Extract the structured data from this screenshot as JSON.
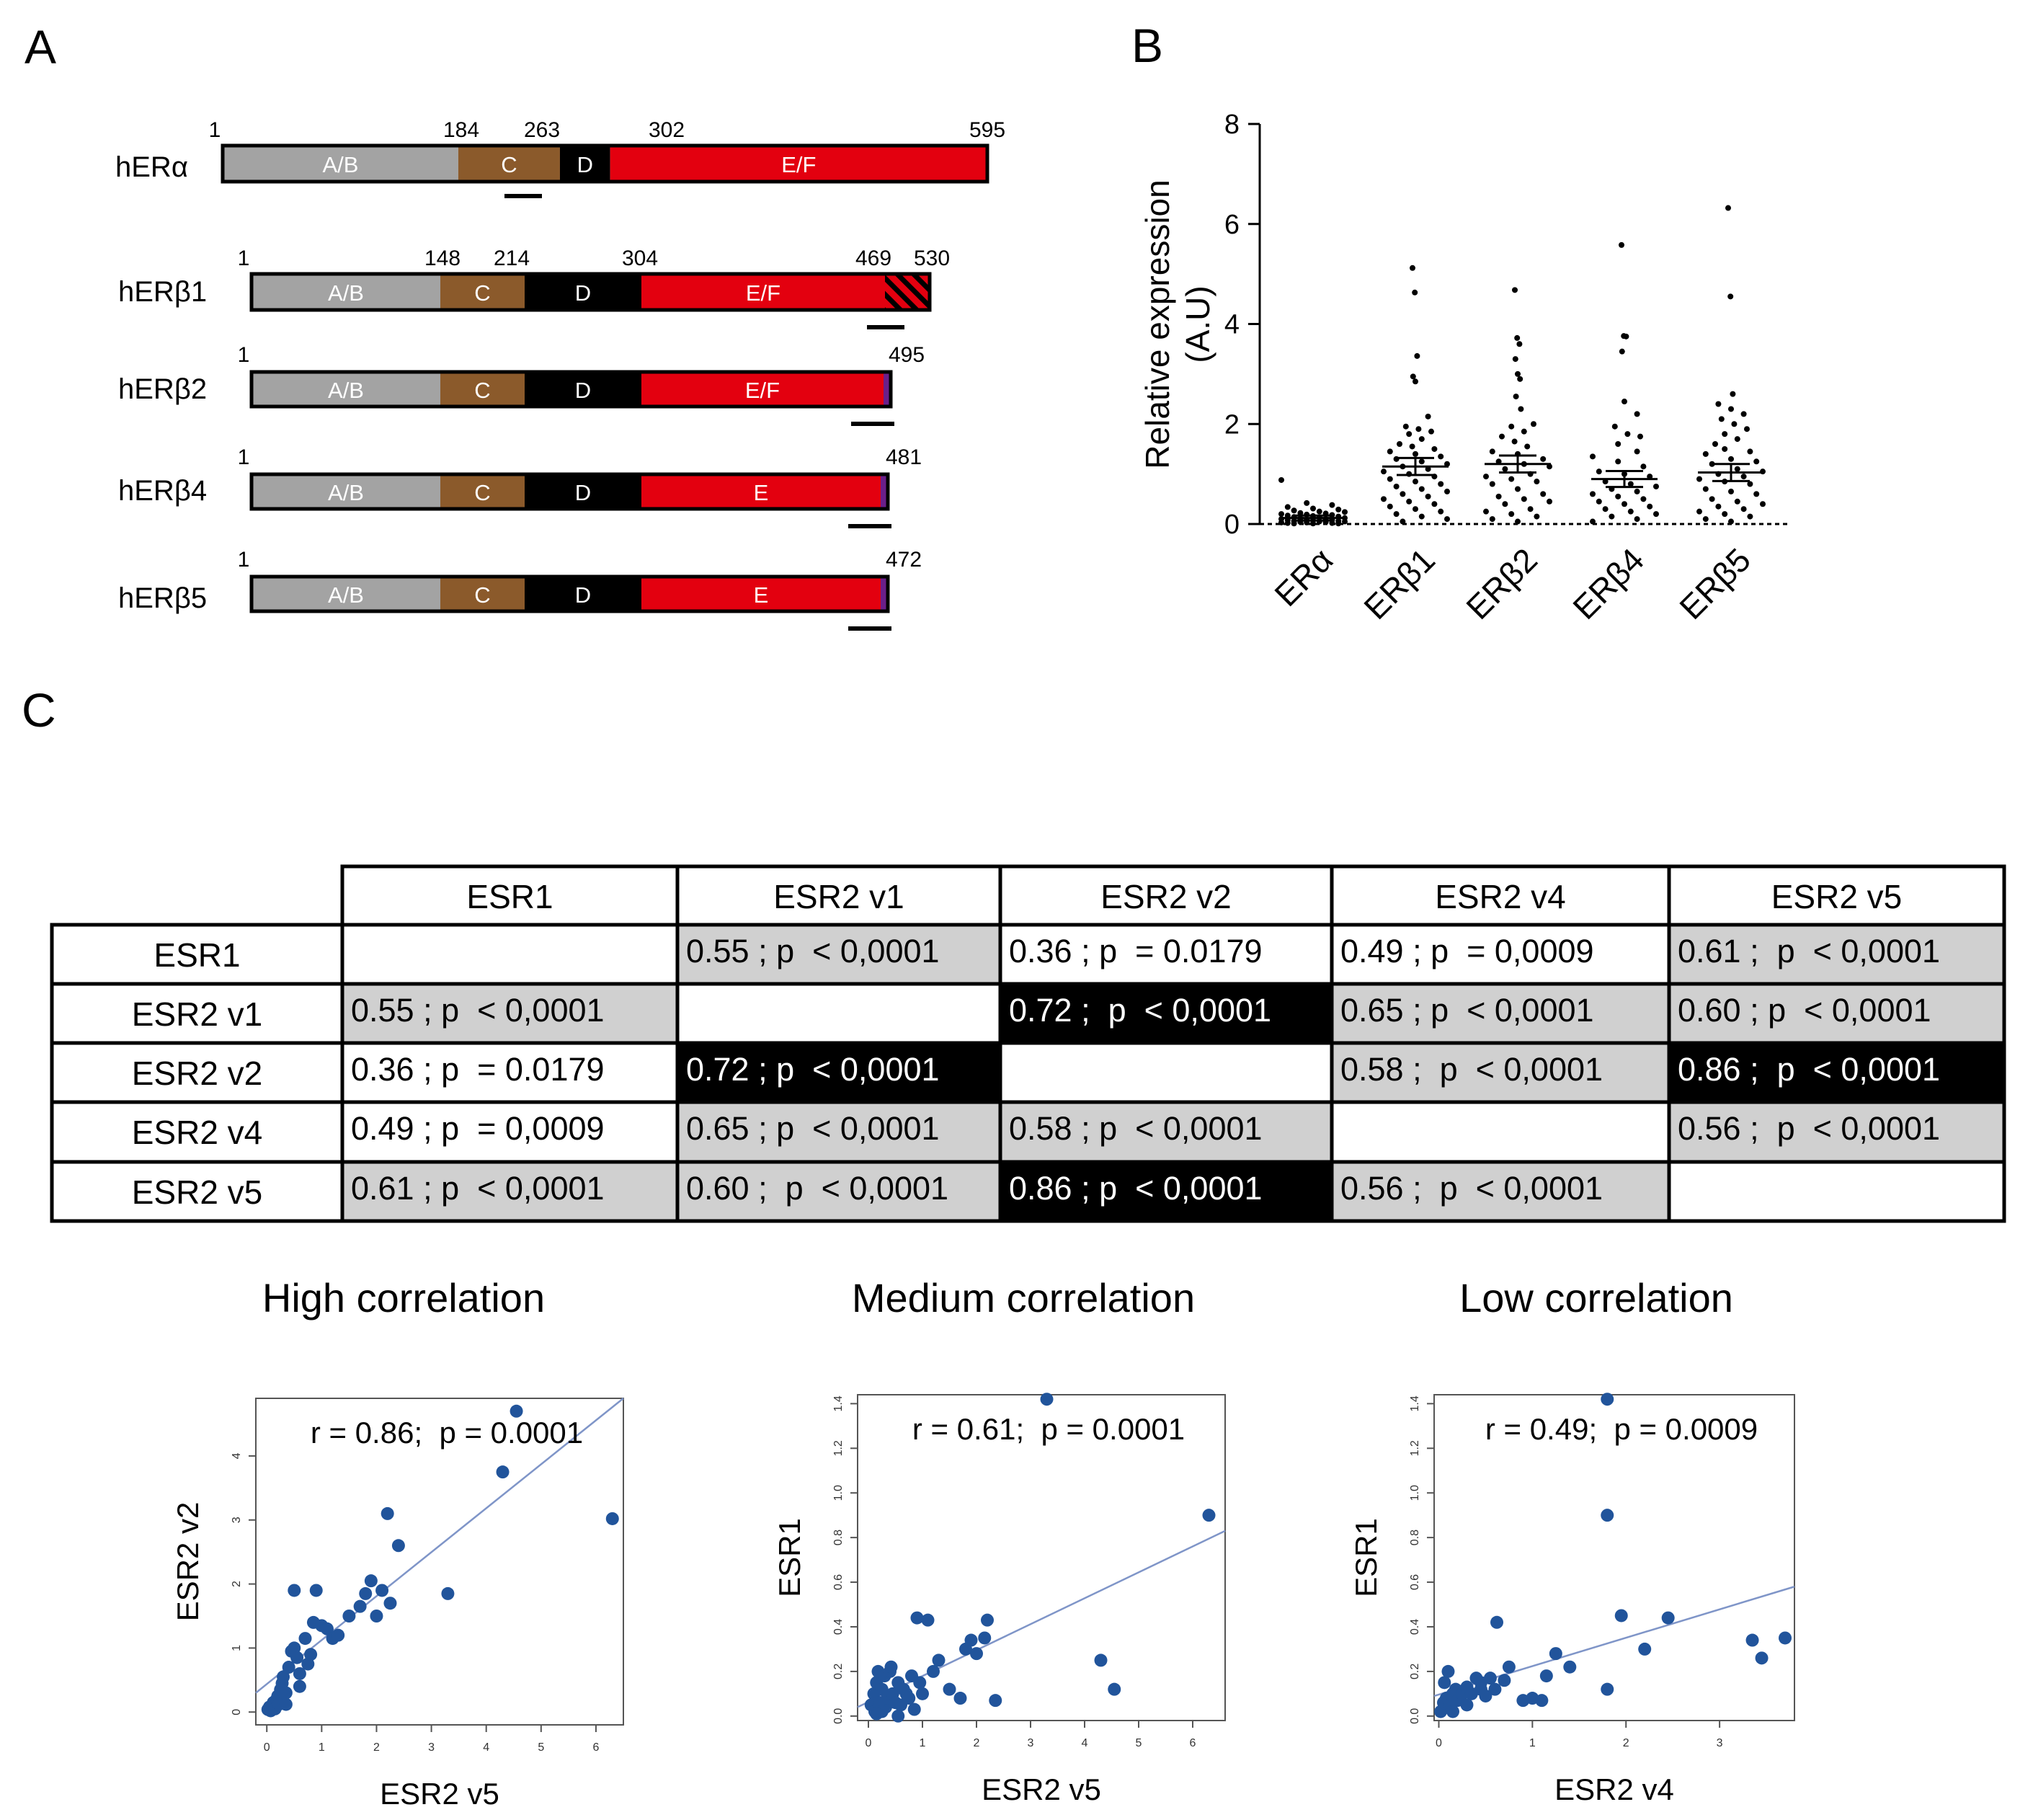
{
  "panel_labels": {
    "a": "A",
    "b": "B",
    "c": "C"
  },
  "colors": {
    "ab": "#a3a3a3",
    "c": "#8b5a2b",
    "d": "#000000",
    "ef": "#e3000f",
    "tail": "#6a1f8a",
    "table_gray": "#d0d0d0",
    "point": "#21549b",
    "line": "#7f95c8"
  },
  "panel_a": {
    "proteins": [
      {
        "name": "hERα",
        "length": 595,
        "positions": [
          1,
          184,
          263,
          302,
          595
        ],
        "labels": [
          "1",
          "184",
          "263",
          "302",
          "595"
        ],
        "segments": [
          {
            "label": "A/B",
            "kind": "ab"
          },
          {
            "label": "C",
            "kind": "c"
          },
          {
            "label": "D",
            "kind": "d"
          },
          {
            "label": "E/F",
            "kind": "ef"
          }
        ]
      },
      {
        "name": "hERβ1",
        "length": 530,
        "positions": [
          1,
          148,
          214,
          304,
          469,
          530
        ],
        "labels": [
          "1",
          "148",
          "214",
          "304",
          "469",
          "530"
        ],
        "segments": [
          {
            "label": "A/B",
            "kind": "ab"
          },
          {
            "label": "C",
            "kind": "c"
          },
          {
            "label": "D",
            "kind": "d"
          },
          {
            "label": "E/F",
            "kind": "ef"
          },
          {
            "label": "",
            "kind": "hatch"
          }
        ]
      },
      {
        "name": "hERβ2",
        "length": 495,
        "positions": [
          1,
          148,
          214,
          304,
          495
        ],
        "labels": [
          "1",
          "495"
        ],
        "segments": [
          {
            "label": "A/B",
            "kind": "ab"
          },
          {
            "label": "C",
            "kind": "c"
          },
          {
            "label": "D",
            "kind": "d"
          },
          {
            "label": "E/F",
            "kind": "ef"
          }
        ]
      },
      {
        "name": "hERβ4",
        "length": 481,
        "positions": [
          1,
          148,
          214,
          304,
          481
        ],
        "labels": [
          "1",
          "481"
        ],
        "segments": [
          {
            "label": "A/B",
            "kind": "ab"
          },
          {
            "label": "C",
            "kind": "c"
          },
          {
            "label": "D",
            "kind": "d"
          },
          {
            "label": "E",
            "kind": "ef"
          }
        ]
      },
      {
        "name": "hERβ5",
        "length": 472,
        "positions": [
          1,
          148,
          214,
          304,
          472
        ],
        "labels": [
          "1",
          "472"
        ],
        "segments": [
          {
            "label": "A/B",
            "kind": "ab"
          },
          {
            "label": "C",
            "kind": "c"
          },
          {
            "label": "D",
            "kind": "d"
          },
          {
            "label": "E",
            "kind": "ef"
          }
        ]
      }
    ]
  },
  "chart_data": [
    {
      "id": "B",
      "type": "scatter",
      "title": "",
      "xlabel": "",
      "ylabel": "Relative expression",
      "ylabel2": "(A.U)",
      "ylim": [
        0,
        8
      ],
      "yticks": [
        "0",
        "2",
        "4",
        "6",
        "8"
      ],
      "categories": [
        "ERα",
        "ERβ1",
        "ERβ2",
        "ERβ4",
        "ERβ5"
      ],
      "means": [
        0.12,
        1.15,
        1.2,
        0.9,
        1.03
      ],
      "sem_upper": [
        0.17,
        1.32,
        1.37,
        1.06,
        1.2
      ],
      "sem_lower": [
        0.07,
        0.98,
        1.03,
        0.74,
        0.86
      ],
      "series": [
        {
          "name": "ERα",
          "values": [
            0.88,
            0.42,
            0.38,
            0.34,
            0.31,
            0.29,
            0.27,
            0.25,
            0.24,
            0.22,
            0.21,
            0.2,
            0.19,
            0.18,
            0.17,
            0.16,
            0.15,
            0.14,
            0.13,
            0.12,
            0.11,
            0.1,
            0.1,
            0.09,
            0.08,
            0.08,
            0.07,
            0.06,
            0.06,
            0.05,
            0.05,
            0.04,
            0.04,
            0.03,
            0.03,
            0.02,
            0.02,
            0.01,
            0.01,
            0.01
          ]
        },
        {
          "name": "ERβ1",
          "values": [
            5.12,
            4.63,
            3.36,
            2.95,
            2.85,
            2.15,
            1.95,
            1.9,
            1.85,
            1.8,
            1.7,
            1.6,
            1.55,
            1.5,
            1.45,
            1.4,
            1.35,
            1.3,
            1.25,
            1.2,
            1.15,
            1.1,
            1.05,
            1.0,
            0.95,
            0.9,
            0.85,
            0.8,
            0.75,
            0.7,
            0.65,
            0.6,
            0.55,
            0.5,
            0.45,
            0.4,
            0.35,
            0.3,
            0.25,
            0.2,
            0.15,
            0.1,
            0.05
          ]
        },
        {
          "name": "ERβ2",
          "values": [
            4.68,
            3.72,
            3.6,
            3.3,
            3.0,
            2.9,
            2.55,
            2.3,
            2.0,
            1.95,
            1.85,
            1.75,
            1.65,
            1.55,
            1.45,
            1.4,
            1.3,
            1.25,
            1.2,
            1.15,
            1.1,
            1.0,
            0.95,
            0.9,
            0.85,
            0.8,
            0.7,
            0.6,
            0.55,
            0.5,
            0.45,
            0.4,
            0.3,
            0.25,
            0.2,
            0.15,
            0.1,
            0.05
          ]
        },
        {
          "name": "ERβ4",
          "values": [
            5.58,
            3.76,
            3.75,
            3.45,
            2.45,
            2.2,
            1.95,
            1.8,
            1.75,
            1.6,
            1.45,
            1.35,
            1.25,
            1.15,
            1.05,
            1.0,
            0.95,
            0.85,
            0.8,
            0.75,
            0.7,
            0.65,
            0.6,
            0.55,
            0.5,
            0.45,
            0.4,
            0.35,
            0.3,
            0.25,
            0.2,
            0.15,
            0.1,
            0.05
          ]
        },
        {
          "name": "ERβ5",
          "values": [
            6.32,
            4.55,
            2.6,
            2.4,
            2.3,
            2.2,
            2.1,
            2.0,
            1.9,
            1.8,
            1.7,
            1.6,
            1.5,
            1.45,
            1.4,
            1.3,
            1.25,
            1.2,
            1.1,
            1.05,
            1.0,
            0.95,
            0.9,
            0.85,
            0.8,
            0.7,
            0.65,
            0.6,
            0.5,
            0.45,
            0.4,
            0.35,
            0.3,
            0.25,
            0.2,
            0.15,
            0.1,
            0.05
          ]
        }
      ]
    },
    {
      "id": "C-table",
      "type": "table",
      "columns": [
        "ESR1",
        "ESR2 v1",
        "ESR2 v2",
        "ESR2 v4",
        "ESR2 v5"
      ],
      "rows": [
        {
          "label": "ESR1",
          "cells": [
            {
              "text": "",
              "shade": "white"
            },
            {
              "text": "0.55 ; p  < 0,0001",
              "shade": "gray"
            },
            {
              "text": "0.36 ; p  = 0.0179",
              "shade": "white"
            },
            {
              "text": "0.49 ; p  = 0,0009",
              "shade": "white"
            },
            {
              "text": "0.61 ;  p  < 0,0001",
              "shade": "gray"
            }
          ]
        },
        {
          "label": "ESR2 v1",
          "cells": [
            {
              "text": "0.55 ; p  < 0,0001",
              "shade": "gray"
            },
            {
              "text": "",
              "shade": "white"
            },
            {
              "text": "0.72 ;  p  < 0,0001",
              "shade": "black"
            },
            {
              "text": "0.65 ; p  < 0,0001",
              "shade": "gray"
            },
            {
              "text": "0.60 ; p  < 0,0001",
              "shade": "gray"
            }
          ]
        },
        {
          "label": "ESR2 v2",
          "cells": [
            {
              "text": "0.36 ; p  = 0.0179",
              "shade": "white"
            },
            {
              "text": "0.72 ; p  < 0,0001",
              "shade": "black"
            },
            {
              "text": "",
              "shade": "white"
            },
            {
              "text": "0.58 ;  p  < 0,0001",
              "shade": "gray"
            },
            {
              "text": "0.86 ;  p  < 0,0001",
              "shade": "black"
            }
          ]
        },
        {
          "label": "ESR2 v4",
          "cells": [
            {
              "text": "0.49 ; p  = 0,0009",
              "shade": "white"
            },
            {
              "text": "0.65 ; p  < 0,0001",
              "shade": "gray"
            },
            {
              "text": "0.58 ; p  < 0,0001",
              "shade": "gray"
            },
            {
              "text": "",
              "shade": "white"
            },
            {
              "text": "0.56 ;  p  < 0,0001",
              "shade": "gray"
            }
          ]
        },
        {
          "label": "ESR2 v5",
          "cells": [
            {
              "text": "0.61 ; p  < 0,0001",
              "shade": "gray"
            },
            {
              "text": "0.60 ;  p  < 0,0001",
              "shade": "gray"
            },
            {
              "text": "0.86 ; p  < 0,0001",
              "shade": "black"
            },
            {
              "text": "0.56 ;  p  < 0,0001",
              "shade": "gray"
            },
            {
              "text": "",
              "shade": "white"
            }
          ]
        }
      ]
    },
    {
      "id": "C-high",
      "type": "scatter",
      "title": "High correlation",
      "annotation": "r = 0.86;  p = 0.0001",
      "xlabel": "ESR2 v5",
      "ylabel": "ESR2 v2",
      "xlim": [
        -0.2,
        6.5
      ],
      "ylim": [
        -0.2,
        4.9
      ],
      "xticks": [
        0,
        1,
        2,
        3,
        4,
        5,
        6
      ],
      "yticks": [
        0,
        1,
        2,
        3,
        4
      ],
      "fit": {
        "x0": -0.2,
        "y0": 0.3,
        "x1": 6.5,
        "y1": 4.9
      },
      "points": [
        [
          0.02,
          0.04
        ],
        [
          0.05,
          0.08
        ],
        [
          0.07,
          0.02
        ],
        [
          0.1,
          0.1
        ],
        [
          0.12,
          0.15
        ],
        [
          0.15,
          0.05
        ],
        [
          0.18,
          0.2
        ],
        [
          0.2,
          0.25
        ],
        [
          0.22,
          0.12
        ],
        [
          0.25,
          0.35
        ],
        [
          0.28,
          0.45
        ],
        [
          0.3,
          0.55
        ],
        [
          0.35,
          0.3
        ],
        [
          0.4,
          0.7
        ],
        [
          0.45,
          0.95
        ],
        [
          0.5,
          1.0
        ],
        [
          0.55,
          0.85
        ],
        [
          0.6,
          0.6
        ],
        [
          0.7,
          1.15
        ],
        [
          0.75,
          0.75
        ],
        [
          0.8,
          0.9
        ],
        [
          0.85,
          1.4
        ],
        [
          0.9,
          1.9
        ],
        [
          1.0,
          1.35
        ],
        [
          1.1,
          1.3
        ],
        [
          1.2,
          1.15
        ],
        [
          1.3,
          1.2
        ],
        [
          1.5,
          1.5
        ],
        [
          1.7,
          1.65
        ],
        [
          1.8,
          1.85
        ],
        [
          1.9,
          2.05
        ],
        [
          2.0,
          1.5
        ],
        [
          2.1,
          1.9
        ],
        [
          2.2,
          3.1
        ],
        [
          2.25,
          1.7
        ],
        [
          2.4,
          2.6
        ],
        [
          3.3,
          1.85
        ],
        [
          4.3,
          3.75
        ],
        [
          4.55,
          4.7
        ],
        [
          6.3,
          3.02
        ],
        [
          0.5,
          1.9
        ],
        [
          0.35,
          0.12
        ],
        [
          0.6,
          0.4
        ]
      ]
    },
    {
      "id": "C-medium",
      "type": "scatter",
      "title": "Medium correlation",
      "annotation": "r = 0.61;  p = 0.0001",
      "xlabel": "ESR2 v5",
      "ylabel": "ESR1",
      "xlim": [
        -0.2,
        6.6
      ],
      "ylim": [
        -0.02,
        1.44
      ],
      "xticks": [
        0,
        1,
        2,
        3,
        4,
        5,
        6
      ],
      "yticks": [
        0.0,
        0.2,
        0.4,
        0.6,
        0.8,
        1.0,
        1.2,
        1.4
      ],
      "fit": {
        "x0": -0.2,
        "y0": 0.04,
        "x1": 6.6,
        "y1": 0.83
      },
      "points": [
        [
          0.05,
          0.05
        ],
        [
          0.1,
          0.1
        ],
        [
          0.12,
          0.02
        ],
        [
          0.15,
          0.15
        ],
        [
          0.18,
          0.2
        ],
        [
          0.2,
          0.06
        ],
        [
          0.25,
          0.12
        ],
        [
          0.3,
          0.18
        ],
        [
          0.32,
          0.04
        ],
        [
          0.35,
          0.08
        ],
        [
          0.4,
          0.2
        ],
        [
          0.42,
          0.22
        ],
        [
          0.45,
          0.1
        ],
        [
          0.5,
          0.06
        ],
        [
          0.55,
          0.15
        ],
        [
          0.6,
          0.05
        ],
        [
          0.65,
          0.12
        ],
        [
          0.7,
          0.1
        ],
        [
          0.75,
          0.08
        ],
        [
          0.8,
          0.18
        ],
        [
          0.85,
          0.03
        ],
        [
          0.9,
          0.44
        ],
        [
          0.95,
          0.15
        ],
        [
          1.0,
          0.1
        ],
        [
          1.1,
          0.43
        ],
        [
          1.2,
          0.2
        ],
        [
          1.3,
          0.25
        ],
        [
          1.5,
          0.12
        ],
        [
          1.7,
          0.08
        ],
        [
          1.8,
          0.3
        ],
        [
          1.9,
          0.34
        ],
        [
          2.0,
          0.28
        ],
        [
          2.15,
          0.35
        ],
        [
          2.2,
          0.43
        ],
        [
          2.35,
          0.07
        ],
        [
          3.3,
          1.42
        ],
        [
          4.3,
          0.25
        ],
        [
          4.55,
          0.12
        ],
        [
          6.3,
          0.9
        ],
        [
          0.25,
          0.02
        ],
        [
          0.55,
          0.0
        ],
        [
          0.15,
          0.01
        ]
      ]
    },
    {
      "id": "C-low",
      "type": "scatter",
      "title": "Low  correlation",
      "annotation": "r = 0.49;  p = 0.0009",
      "xlabel": "ESR2 v4",
      "ylabel": "ESR1",
      "xlim": [
        -0.05,
        3.8
      ],
      "ylim": [
        -0.02,
        1.44
      ],
      "xticks": [
        0,
        1,
        2,
        3
      ],
      "yticks": [
        0.0,
        0.2,
        0.4,
        0.6,
        0.8,
        1.0,
        1.2,
        1.4
      ],
      "fit": {
        "x0": -0.05,
        "y0": 0.09,
        "x1": 3.8,
        "y1": 0.58
      },
      "points": [
        [
          0.02,
          0.02
        ],
        [
          0.05,
          0.06
        ],
        [
          0.06,
          0.15
        ],
        [
          0.08,
          0.08
        ],
        [
          0.1,
          0.2
        ],
        [
          0.12,
          0.05
        ],
        [
          0.15,
          0.1
        ],
        [
          0.18,
          0.12
        ],
        [
          0.2,
          0.07
        ],
        [
          0.25,
          0.1
        ],
        [
          0.3,
          0.13
        ],
        [
          0.35,
          0.1
        ],
        [
          0.4,
          0.17
        ],
        [
          0.45,
          0.12
        ],
        [
          0.5,
          0.09
        ],
        [
          0.55,
          0.17
        ],
        [
          0.6,
          0.12
        ],
        [
          0.62,
          0.42
        ],
        [
          0.7,
          0.16
        ],
        [
          0.75,
          0.22
        ],
        [
          0.9,
          0.07
        ],
        [
          1.0,
          0.08
        ],
        [
          1.1,
          0.07
        ],
        [
          1.15,
          0.18
        ],
        [
          1.25,
          0.28
        ],
        [
          1.4,
          0.22
        ],
        [
          1.8,
          1.42
        ],
        [
          1.8,
          0.9
        ],
        [
          1.8,
          0.12
        ],
        [
          1.95,
          0.45
        ],
        [
          2.2,
          0.3
        ],
        [
          2.45,
          0.44
        ],
        [
          3.35,
          0.34
        ],
        [
          3.45,
          0.26
        ],
        [
          3.7,
          0.35
        ],
        [
          0.3,
          0.05
        ],
        [
          0.15,
          0.02
        ],
        [
          0.45,
          0.15
        ]
      ]
    }
  ]
}
